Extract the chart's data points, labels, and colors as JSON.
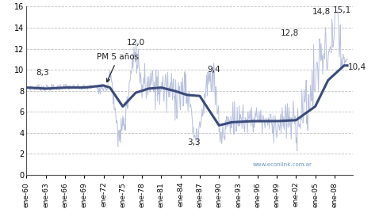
{
  "ylim": [
    0,
    16
  ],
  "yticks": [
    0,
    2,
    4,
    6,
    8,
    10,
    12,
    14,
    16
  ],
  "xtick_labels": [
    "ene-60",
    "ene-63",
    "ene-66",
    "ene-69",
    "ene-72",
    "ene-75",
    "ene-78",
    "ene-81",
    "ene-84",
    "ene-87",
    "ene-90",
    "ene-93",
    "ene-96",
    "ene-99",
    "ene-02",
    "ene-05",
    "ene-08"
  ],
  "watermark": "www.econlink.com.ar",
  "line_color": "#b8c0de",
  "ma_color": "#3a4a7a",
  "background_color": "#ffffff",
  "grid_color": "#c0c0c0",
  "ann_fontsize": 7.5,
  "ann_color": "#222222",
  "ma_knots_y": [
    1960,
    1963,
    1966,
    1969,
    1972,
    1973,
    1975,
    1977,
    1979,
    1981,
    1983,
    1985,
    1987,
    1990,
    1992,
    1995,
    1999,
    2002,
    2005,
    2007,
    2009.5
  ],
  "ma_knots_v": [
    8.3,
    8.2,
    8.3,
    8.3,
    8.5,
    8.3,
    6.5,
    7.8,
    8.2,
    8.3,
    8.0,
    7.6,
    7.5,
    4.7,
    5.0,
    5.1,
    5.1,
    5.2,
    6.5,
    9.0,
    10.4
  ],
  "monthly_knots_y": [
    1960,
    1962,
    1964,
    1966,
    1968,
    1970,
    1971,
    1972,
    1973,
    1974,
    1975,
    1976,
    1977,
    1978,
    1979,
    1980,
    1981,
    1982,
    1983,
    1984,
    1985,
    1986,
    1987,
    1988,
    1989,
    1990,
    1991,
    1992,
    1993,
    1994,
    1995,
    1996,
    1997,
    1998,
    1999,
    2000,
    2001,
    2002,
    2003,
    2004,
    2005,
    2006,
    2007,
    2008,
    2009,
    2010
  ],
  "monthly_knots_v": [
    8.3,
    8.3,
    8.3,
    8.4,
    8.3,
    8.3,
    8.4,
    8.5,
    8.6,
    7.5,
    5.0,
    8.5,
    10.5,
    8.5,
    8.5,
    8.5,
    8.3,
    8.0,
    8.0,
    7.8,
    7.5,
    6.5,
    7.5,
    8.5,
    8.5,
    8.5,
    4.5,
    5.0,
    5.2,
    5.0,
    5.0,
    5.5,
    5.5,
    4.5,
    5.0,
    5.5,
    5.0,
    5.0,
    5.5,
    6.5,
    8.0,
    10.5,
    12.5,
    14.5,
    10.5,
    10.4
  ]
}
